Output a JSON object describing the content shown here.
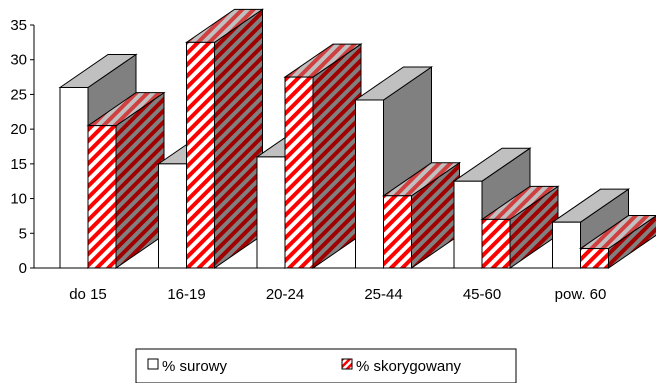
{
  "chart_data": {
    "type": "bar",
    "style": "3d-clustered",
    "categories": [
      "do 15",
      "16-19",
      "20-24",
      "25-44",
      "45-60",
      "pow. 60"
    ],
    "series": [
      {
        "name": "% surowy",
        "values": [
          26,
          15,
          16,
          24.2,
          12.5,
          6.6
        ],
        "face_color": "#ffffff",
        "side_color": "#808080",
        "top_color": "#c0c0c0",
        "pattern": "solid"
      },
      {
        "name": "% skorygowany",
        "values": [
          20.5,
          32.5,
          27.5,
          10.4,
          7.0,
          2.8
        ],
        "face_color": "#ffffff",
        "stripe_color": "#ff0000",
        "pattern": "diagonal-stripes"
      }
    ],
    "ylim": [
      0,
      35
    ],
    "yticks": [
      0,
      5,
      10,
      15,
      20,
      25,
      30,
      35
    ],
    "grid": false,
    "legend": "bottom"
  }
}
